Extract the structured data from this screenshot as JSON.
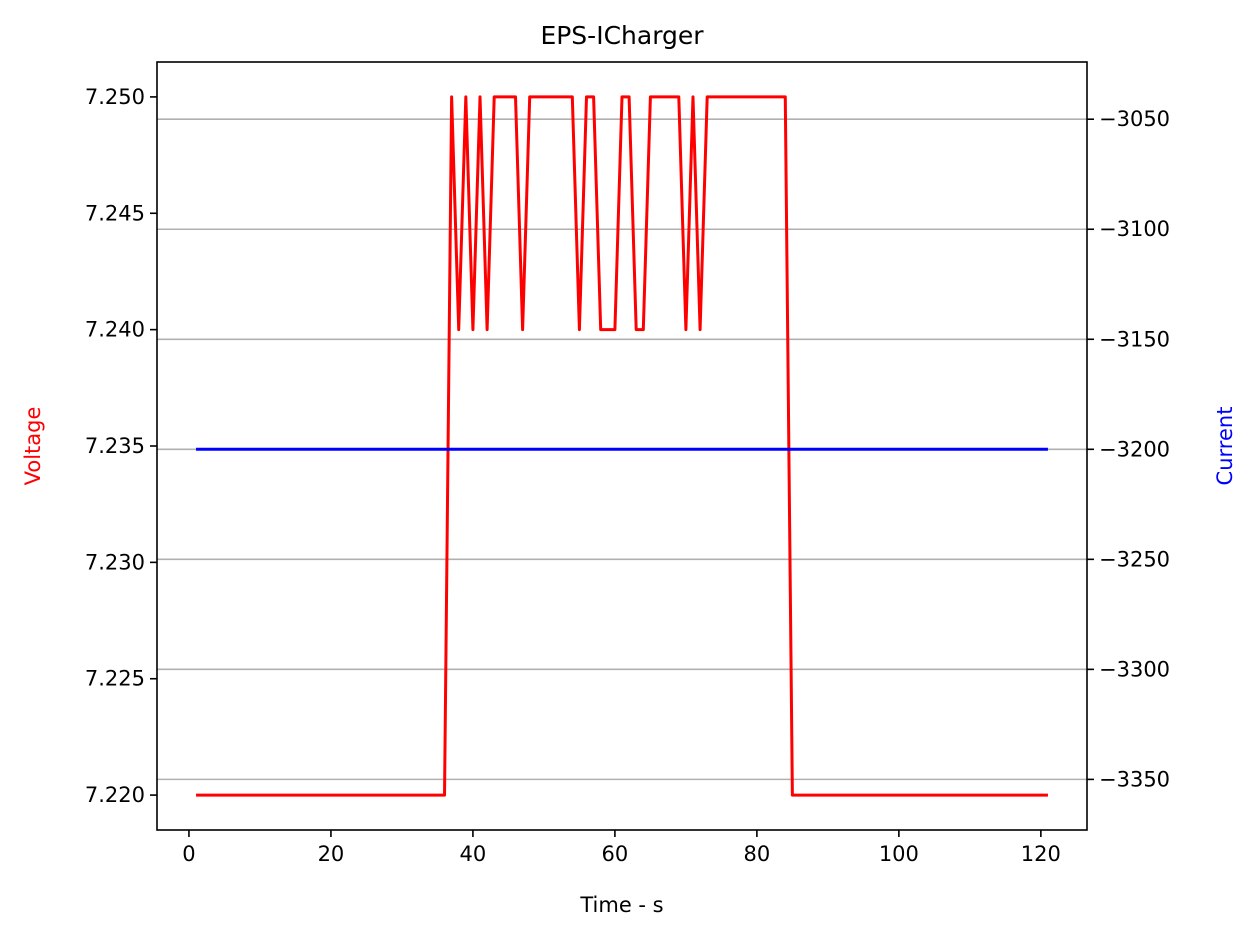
{
  "chart_data": {
    "type": "line",
    "title": "EPS-ICharger",
    "xlabel": "Time - s",
    "ylabel_left": "Voltage",
    "ylabel_right": "Current",
    "xlim": [
      -4.5,
      126.5
    ],
    "ylim_left": [
      7.2185,
      7.2515
    ],
    "ylim_right": [
      -3373,
      -3024
    ],
    "xticks": [
      0,
      20,
      40,
      60,
      80,
      100,
      120
    ],
    "yticks_left": [
      7.22,
      7.225,
      7.23,
      7.235,
      7.24,
      7.245,
      7.25
    ],
    "yticks_right": [
      -3350,
      -3300,
      -3250,
      -3200,
      -3150,
      -3100,
      -3050
    ],
    "grid": "horizontal lines at right-axis ticks",
    "colors": {
      "voltage": "#ff0000",
      "current": "#0000ff",
      "grid": "#b0b0b0",
      "axes": "#000000"
    },
    "series": [
      {
        "name": "Voltage",
        "axis": "left",
        "x": [
          1,
          36,
          37,
          38,
          39,
          40,
          41,
          42,
          43,
          46,
          47,
          48,
          54,
          55,
          56,
          57,
          58,
          60,
          61,
          62,
          63,
          64,
          65,
          69,
          70,
          71,
          72,
          73,
          84,
          85,
          121
        ],
        "values": [
          7.22,
          7.22,
          7.25,
          7.24,
          7.25,
          7.24,
          7.25,
          7.24,
          7.25,
          7.25,
          7.24,
          7.25,
          7.25,
          7.24,
          7.25,
          7.25,
          7.24,
          7.24,
          7.25,
          7.25,
          7.24,
          7.24,
          7.25,
          7.25,
          7.24,
          7.25,
          7.24,
          7.25,
          7.25,
          7.22,
          7.22
        ]
      },
      {
        "name": "Current",
        "axis": "right",
        "x": [
          1,
          121
        ],
        "values": [
          -3200,
          -3200
        ]
      }
    ]
  }
}
